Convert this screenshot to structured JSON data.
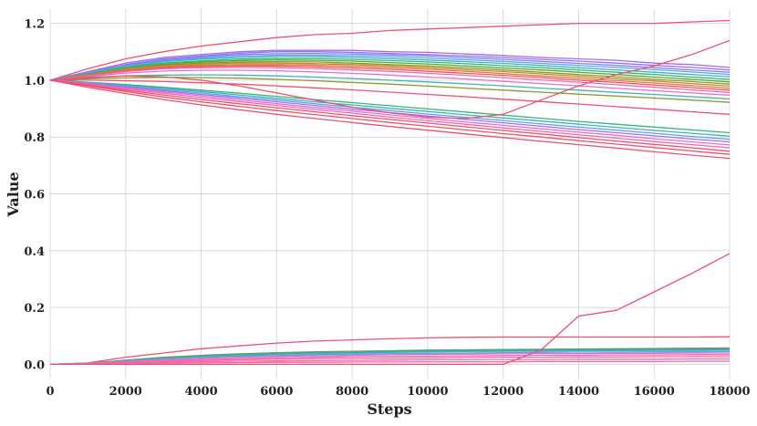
{
  "chart_data": {
    "type": "line",
    "title": "",
    "xlabel": "Steps",
    "ylabel": "Value",
    "xlim": [
      0,
      18000
    ],
    "ylim": [
      -0.05,
      1.25
    ],
    "grid": true,
    "legend": "none",
    "x_ticks": [
      0,
      2000,
      4000,
      6000,
      8000,
      10000,
      12000,
      14000,
      16000,
      18000
    ],
    "y_ticks": [
      0.0,
      0.2,
      0.4,
      0.6,
      0.8,
      1.0,
      1.2
    ],
    "x": [
      0,
      1000,
      2000,
      3000,
      4000,
      5000,
      6000,
      7000,
      8000,
      9000,
      10000,
      11000,
      12000,
      13000,
      14000,
      15000,
      16000,
      17000,
      18000
    ],
    "series": [
      {
        "color": "#f0506e",
        "values": [
          1.0,
          1.04,
          1.075,
          1.1,
          1.12,
          1.135,
          1.15,
          1.16,
          1.165,
          1.175,
          1.18,
          1.185,
          1.19,
          1.195,
          1.2,
          1.2,
          1.2,
          1.205,
          1.21
        ]
      },
      {
        "color": "#a36cf0",
        "values": [
          1.0,
          1.03,
          1.06,
          1.08,
          1.09,
          1.1,
          1.105,
          1.105,
          1.105,
          1.1,
          1.098,
          1.092,
          1.087,
          1.08,
          1.075,
          1.07,
          1.06,
          1.055,
          1.045
        ]
      },
      {
        "color": "#9a6ff2",
        "values": [
          1.0,
          1.028,
          1.055,
          1.075,
          1.085,
          1.095,
          1.1,
          1.1,
          1.098,
          1.094,
          1.09,
          1.085,
          1.08,
          1.073,
          1.067,
          1.06,
          1.052,
          1.045,
          1.036
        ]
      },
      {
        "color": "#7a86f5",
        "values": [
          1.0,
          1.027,
          1.053,
          1.072,
          1.082,
          1.09,
          1.093,
          1.094,
          1.092,
          1.089,
          1.085,
          1.079,
          1.073,
          1.066,
          1.059,
          1.052,
          1.044,
          1.036,
          1.028
        ]
      },
      {
        "color": "#5fa0f0",
        "values": [
          1.0,
          1.025,
          1.05,
          1.068,
          1.078,
          1.085,
          1.088,
          1.088,
          1.086,
          1.083,
          1.078,
          1.072,
          1.066,
          1.059,
          1.052,
          1.045,
          1.037,
          1.029,
          1.02
        ]
      },
      {
        "color": "#3fb3b8",
        "values": [
          1.0,
          1.024,
          1.047,
          1.065,
          1.074,
          1.08,
          1.083,
          1.083,
          1.08,
          1.076,
          1.071,
          1.065,
          1.059,
          1.052,
          1.044,
          1.036,
          1.028,
          1.02,
          1.012
        ]
      },
      {
        "color": "#35b779",
        "values": [
          1.0,
          1.022,
          1.045,
          1.06,
          1.068,
          1.074,
          1.076,
          1.076,
          1.073,
          1.069,
          1.064,
          1.058,
          1.051,
          1.044,
          1.036,
          1.028,
          1.02,
          1.011,
          1.003
        ]
      },
      {
        "color": "#52a83a",
        "values": [
          1.0,
          1.021,
          1.042,
          1.056,
          1.064,
          1.069,
          1.071,
          1.07,
          1.067,
          1.062,
          1.057,
          1.05,
          1.043,
          1.036,
          1.028,
          1.02,
          1.011,
          1.003,
          0.994
        ]
      },
      {
        "color": "#8a9a2a",
        "values": [
          1.0,
          1.02,
          1.04,
          1.053,
          1.06,
          1.064,
          1.065,
          1.064,
          1.06,
          1.055,
          1.05,
          1.043,
          1.036,
          1.028,
          1.02,
          1.012,
          1.003,
          0.995,
          0.986
        ]
      },
      {
        "color": "#c48a2a",
        "values": [
          1.0,
          1.019,
          1.038,
          1.05,
          1.056,
          1.06,
          1.06,
          1.058,
          1.055,
          1.05,
          1.044,
          1.037,
          1.03,
          1.022,
          1.014,
          1.005,
          0.997,
          0.988,
          0.979
        ]
      },
      {
        "color": "#e07a3a",
        "values": [
          1.0,
          1.018,
          1.035,
          1.047,
          1.052,
          1.055,
          1.055,
          1.053,
          1.049,
          1.044,
          1.038,
          1.031,
          1.023,
          1.015,
          1.007,
          0.998,
          0.99,
          0.981,
          0.972
        ]
      },
      {
        "color": "#f0506e",
        "values": [
          1.0,
          1.017,
          1.033,
          1.044,
          1.048,
          1.05,
          1.05,
          1.047,
          1.043,
          1.038,
          1.031,
          1.024,
          1.017,
          1.009,
          1.0,
          0.992,
          0.983,
          0.974,
          0.965
        ]
      },
      {
        "color": "#f06aa8",
        "values": [
          1.0,
          1.015,
          1.03,
          1.04,
          1.044,
          1.045,
          1.044,
          1.041,
          1.036,
          1.031,
          1.024,
          1.017,
          1.009,
          1.001,
          0.993,
          0.984,
          0.975,
          0.966,
          0.957
        ]
      },
      {
        "color": "#e070d0",
        "values": [
          1.0,
          1.013,
          1.025,
          1.032,
          1.035,
          1.035,
          1.033,
          1.029,
          1.024,
          1.018,
          1.011,
          1.004,
          0.996,
          0.988,
          0.98,
          0.971,
          0.963,
          0.955,
          0.947
        ]
      },
      {
        "color": "#3fb3b8",
        "values": [
          1.0,
          1.008,
          1.015,
          1.018,
          1.019,
          1.018,
          1.015,
          1.011,
          1.006,
          1.0,
          0.994,
          0.987,
          0.98,
          0.972,
          0.965,
          0.957,
          0.95,
          0.942,
          0.934
        ]
      },
      {
        "color": "#8a9a2a",
        "values": [
          1.0,
          1.005,
          1.008,
          1.01,
          1.009,
          1.007,
          1.003,
          0.998,
          0.992,
          0.986,
          0.979,
          0.972,
          0.965,
          0.958,
          0.951,
          0.944,
          0.937,
          0.93,
          0.922
        ]
      },
      {
        "color": "#f0506e",
        "values": [
          1.0,
          1.0,
          0.998,
          0.995,
          0.991,
          0.986,
          0.98,
          0.973,
          0.966,
          0.958,
          0.95,
          0.942,
          0.933,
          0.925,
          0.916,
          0.907,
          0.898,
          0.889,
          0.88
        ]
      },
      {
        "color": "#35b779",
        "values": [
          1.0,
          0.993,
          0.985,
          0.975,
          0.965,
          0.954,
          0.943,
          0.932,
          0.921,
          0.91,
          0.899,
          0.888,
          0.877,
          0.866,
          0.855,
          0.845,
          0.835,
          0.825,
          0.815
        ]
      },
      {
        "color": "#3fb3b8",
        "values": [
          1.0,
          0.992,
          0.982,
          0.971,
          0.96,
          0.948,
          0.936,
          0.924,
          0.913,
          0.901,
          0.89,
          0.878,
          0.867,
          0.856,
          0.845,
          0.834,
          0.823,
          0.813,
          0.803
        ]
      },
      {
        "color": "#5fa0f0",
        "values": [
          1.0,
          0.99,
          0.979,
          0.967,
          0.955,
          0.942,
          0.93,
          0.917,
          0.905,
          0.893,
          0.881,
          0.869,
          0.858,
          0.846,
          0.835,
          0.824,
          0.813,
          0.802,
          0.792
        ]
      },
      {
        "color": "#a36cf0",
        "values": [
          1.0,
          0.989,
          0.976,
          0.963,
          0.95,
          0.937,
          0.924,
          0.911,
          0.898,
          0.886,
          0.874,
          0.862,
          0.85,
          0.838,
          0.826,
          0.815,
          0.804,
          0.793,
          0.783
        ]
      },
      {
        "color": "#e070d0",
        "values": [
          1.0,
          0.987,
          0.973,
          0.959,
          0.945,
          0.931,
          0.917,
          0.904,
          0.891,
          0.878,
          0.865,
          0.853,
          0.841,
          0.829,
          0.817,
          0.806,
          0.794,
          0.783,
          0.772
        ]
      },
      {
        "color": "#f06aa8",
        "values": [
          1.0,
          0.985,
          0.969,
          0.954,
          0.939,
          0.925,
          0.911,
          0.897,
          0.884,
          0.87,
          0.857,
          0.845,
          0.832,
          0.82,
          0.808,
          0.796,
          0.784,
          0.773,
          0.762
        ]
      },
      {
        "color": "#f0506e",
        "values": [
          1.0,
          0.983,
          0.965,
          0.948,
          0.932,
          0.917,
          0.903,
          0.889,
          0.875,
          0.862,
          0.849,
          0.836,
          0.823,
          0.811,
          0.798,
          0.786,
          0.774,
          0.762,
          0.75
        ]
      },
      {
        "color": "#f0506e",
        "values": [
          1.0,
          0.98,
          0.96,
          0.941,
          0.924,
          0.908,
          0.893,
          0.879,
          0.865,
          0.851,
          0.838,
          0.825,
          0.812,
          0.8,
          0.787,
          0.775,
          0.763,
          0.751,
          0.739
        ]
      },
      {
        "color": "#f0506e",
        "values": [
          1.0,
          0.975,
          0.953,
          0.932,
          0.913,
          0.896,
          0.88,
          0.865,
          0.851,
          0.837,
          0.824,
          0.811,
          0.798,
          0.785,
          0.773,
          0.761,
          0.748,
          0.736,
          0.725
        ]
      },
      {
        "color": "#f0506e",
        "values": [
          1.0,
          1.01,
          1.015,
          1.012,
          1.0,
          0.98,
          0.955,
          0.93,
          0.905,
          0.885,
          0.87,
          0.865,
          0.88,
          0.93,
          0.98,
          1.02,
          1.05,
          1.09,
          1.14
        ]
      },
      {
        "color": "#f0506e",
        "values": [
          0.0,
          0.005,
          0.025,
          0.04,
          0.055,
          0.065,
          0.075,
          0.082,
          0.086,
          0.09,
          0.093,
          0.095,
          0.096,
          0.096,
          0.096,
          0.096,
          0.096,
          0.096,
          0.097
        ]
      },
      {
        "color": "#a36cf0",
        "values": [
          0.0,
          0.004,
          0.015,
          0.025,
          0.032,
          0.037,
          0.041,
          0.044,
          0.046,
          0.048,
          0.05,
          0.051,
          0.052,
          0.053,
          0.054,
          0.055,
          0.056,
          0.057,
          0.058
        ]
      },
      {
        "color": "#52a83a",
        "values": [
          0.0,
          0.004,
          0.014,
          0.024,
          0.031,
          0.036,
          0.04,
          0.043,
          0.045,
          0.047,
          0.049,
          0.05,
          0.051,
          0.052,
          0.053,
          0.054,
          0.055,
          0.055,
          0.056
        ]
      },
      {
        "color": "#35b779",
        "values": [
          0.0,
          0.004,
          0.013,
          0.022,
          0.029,
          0.034,
          0.038,
          0.041,
          0.043,
          0.045,
          0.047,
          0.048,
          0.049,
          0.05,
          0.051,
          0.051,
          0.052,
          0.052,
          0.053
        ]
      },
      {
        "color": "#3fb3b8",
        "values": [
          0.0,
          0.003,
          0.012,
          0.02,
          0.026,
          0.031,
          0.035,
          0.038,
          0.04,
          0.042,
          0.044,
          0.045,
          0.046,
          0.047,
          0.048,
          0.048,
          0.049,
          0.049,
          0.05
        ]
      },
      {
        "color": "#5fa0f0",
        "values": [
          0.0,
          0.003,
          0.011,
          0.018,
          0.024,
          0.028,
          0.031,
          0.034,
          0.036,
          0.038,
          0.039,
          0.04,
          0.041,
          0.042,
          0.043,
          0.043,
          0.044,
          0.044,
          0.045
        ]
      },
      {
        "color": "#e070d0",
        "values": [
          0.0,
          0.003,
          0.01,
          0.016,
          0.021,
          0.025,
          0.028,
          0.03,
          0.032,
          0.034,
          0.035,
          0.036,
          0.037,
          0.038,
          0.038,
          0.039,
          0.039,
          0.04,
          0.04
        ]
      },
      {
        "color": "#f06aa8",
        "values": [
          0.0,
          0.002,
          0.008,
          0.013,
          0.017,
          0.02,
          0.023,
          0.025,
          0.027,
          0.028,
          0.029,
          0.03,
          0.031,
          0.032,
          0.032,
          0.033,
          0.033,
          0.034,
          0.034
        ]
      },
      {
        "color": "#f06aa8",
        "values": [
          0.0,
          0.002,
          0.006,
          0.01,
          0.013,
          0.016,
          0.018,
          0.02,
          0.021,
          0.022,
          0.023,
          0.024,
          0.025,
          0.025,
          0.026,
          0.026,
          0.027,
          0.027,
          0.027
        ]
      },
      {
        "color": "#f06aa8",
        "values": [
          0.0,
          0.001,
          0.004,
          0.007,
          0.009,
          0.011,
          0.012,
          0.013,
          0.014,
          0.015,
          0.016,
          0.016,
          0.017,
          0.017,
          0.018,
          0.018,
          0.018,
          0.019,
          0.019
        ]
      },
      {
        "color": "#f06aa8",
        "values": [
          0.0,
          0.001,
          0.002,
          0.004,
          0.005,
          0.006,
          0.007,
          0.007,
          0.008,
          0.008,
          0.009,
          0.009,
          0.009,
          0.01,
          0.01,
          0.01,
          0.01,
          0.011,
          0.011
        ]
      },
      {
        "color": "#f0506e",
        "values": [
          0.0,
          0.0,
          0.0,
          0.0,
          0.0,
          0.0,
          0.0,
          0.0,
          0.0,
          0.0,
          0.0,
          0.0,
          0.0,
          0.05,
          0.17,
          0.19,
          0.255,
          0.32,
          0.39
        ]
      }
    ]
  }
}
